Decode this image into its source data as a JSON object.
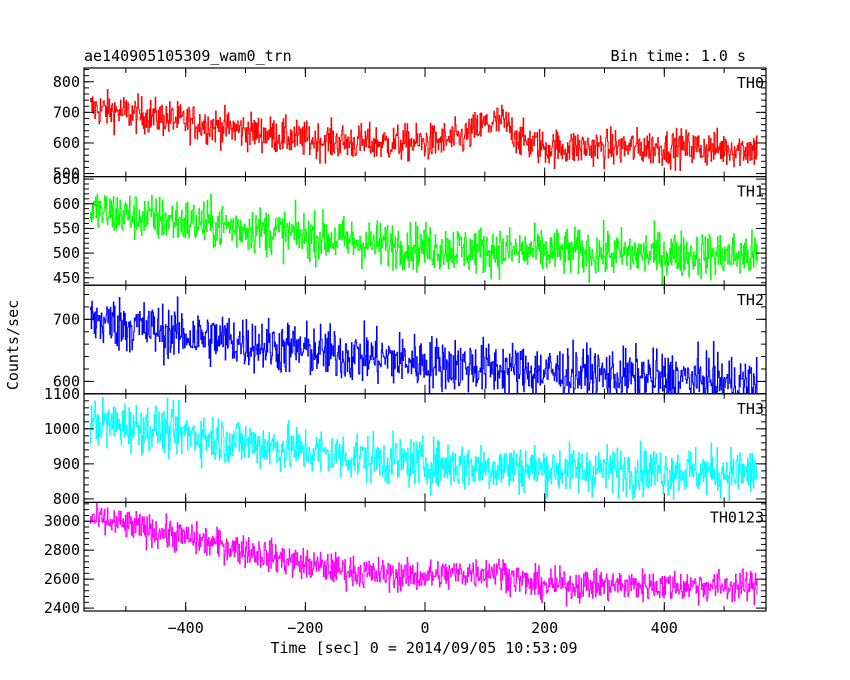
{
  "header": {
    "title": "ae140905105309_wam0_trn",
    "bin_time": "Bin time: 1.0 s"
  },
  "chart_data": {
    "type": "line",
    "xlabel": "Time [sec] 0 = 2014/09/05 10:53:09",
    "ylabel": "Counts/sec",
    "xlim": [
      -570,
      570
    ],
    "x_ticks": [
      -400,
      -200,
      0,
      200,
      400
    ],
    "x_start": -560,
    "x_end": 555,
    "bin_time_s": 1.0,
    "panels": [
      {
        "name": "TH0",
        "color": "#ff0000",
        "ylim": [
          490,
          845
        ],
        "y_ticks": [
          500,
          600,
          700,
          800
        ],
        "noise": 30,
        "trend": [
          [
            -560,
            715
          ],
          [
            -450,
            685
          ],
          [
            -300,
            640
          ],
          [
            -200,
            610
          ],
          [
            -100,
            600
          ],
          [
            0,
            600
          ],
          [
            60,
            615
          ],
          [
            100,
            660
          ],
          [
            130,
            670
          ],
          [
            160,
            610
          ],
          [
            200,
            585
          ],
          [
            400,
            585
          ],
          [
            555,
            580
          ]
        ]
      },
      {
        "name": "TH1",
        "color": "#00ff00",
        "ylim": [
          435,
          655
        ],
        "y_ticks": [
          450,
          500,
          550,
          600,
          650
        ],
        "noise": 24,
        "trend": [
          [
            -560,
            585
          ],
          [
            -450,
            570
          ],
          [
            -300,
            550
          ],
          [
            -100,
            520
          ],
          [
            100,
            505
          ],
          [
            300,
            500
          ],
          [
            555,
            495
          ]
        ]
      },
      {
        "name": "TH2",
        "color": "#0000ff",
        "ylim": [
          580,
          755
        ],
        "y_ticks": [
          600,
          700
        ],
        "noise": 22,
        "trend": [
          [
            -560,
            700
          ],
          [
            -400,
            675
          ],
          [
            -200,
            650
          ],
          [
            0,
            630
          ],
          [
            200,
            615
          ],
          [
            400,
            605
          ],
          [
            555,
            595
          ]
        ]
      },
      {
        "name": "TH3",
        "color": "#00ffff",
        "ylim": [
          790,
          1100
        ],
        "y_ticks": [
          800,
          900,
          1000,
          1100
        ],
        "noise": 35,
        "trend": [
          [
            -560,
            1020
          ],
          [
            -450,
            1000
          ],
          [
            -300,
            960
          ],
          [
            -150,
            925
          ],
          [
            0,
            900
          ],
          [
            200,
            885
          ],
          [
            400,
            880
          ],
          [
            555,
            875
          ]
        ]
      },
      {
        "name": "TH0123",
        "color": "#ff00ff",
        "ylim": [
          2380,
          3130
        ],
        "y_ticks": [
          2400,
          2600,
          2800,
          3000
        ],
        "noise": 55,
        "trend": [
          [
            -560,
            3020
          ],
          [
            -450,
            2930
          ],
          [
            -300,
            2800
          ],
          [
            -200,
            2700
          ],
          [
            -100,
            2640
          ],
          [
            0,
            2620
          ],
          [
            60,
            2640
          ],
          [
            120,
            2660
          ],
          [
            180,
            2560
          ],
          [
            300,
            2560
          ],
          [
            555,
            2550
          ]
        ]
      }
    ]
  }
}
